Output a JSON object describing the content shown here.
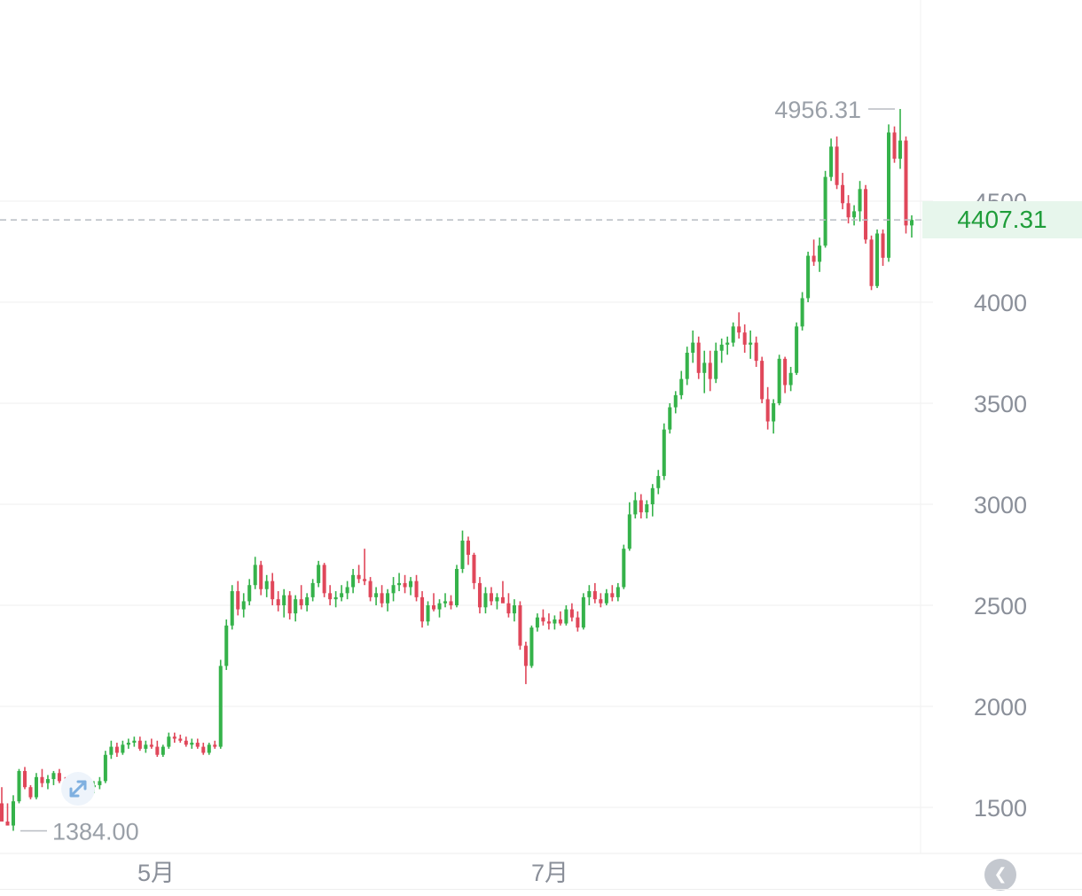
{
  "chart_data": {
    "type": "candlestick",
    "price_axis": {
      "ticks": [
        1500,
        2000,
        2500,
        3000,
        3500,
        4000,
        4500
      ],
      "tick_labels": [
        "1500",
        "2000",
        "2500",
        "3000",
        "3500",
        "4000",
        "4500"
      ],
      "range": [
        1300,
        5000
      ],
      "position": "right"
    },
    "time_axis": {
      "tick_labels": [
        "5月",
        "7月"
      ]
    },
    "last_price": "4407.31",
    "high_label": "4956.31",
    "low_label": "1384.00",
    "grid": true,
    "colors": {
      "up": "#35b24a",
      "down": "#e0475a",
      "last_price_text": "#1f9d3a",
      "last_price_bg": "#e7f6ec",
      "grid": "#efefef",
      "axis_text": "#8a8f99"
    },
    "candles_ohlc": [
      [
        1520,
        1600,
        1450,
        1430
      ],
      [
        1430,
        1520,
        1420,
        1410
      ],
      [
        1410,
        1560,
        1384,
        1530
      ],
      [
        1530,
        1690,
        1520,
        1680
      ],
      [
        1680,
        1700,
        1590,
        1600
      ],
      [
        1600,
        1610,
        1540,
        1550
      ],
      [
        1550,
        1670,
        1540,
        1650
      ],
      [
        1650,
        1690,
        1600,
        1620
      ],
      [
        1620,
        1660,
        1590,
        1640
      ],
      [
        1640,
        1680,
        1610,
        1670
      ],
      [
        1670,
        1690,
        1620,
        1630
      ],
      [
        1630,
        1650,
        1580,
        1600
      ],
      [
        1600,
        1640,
        1560,
        1590
      ],
      [
        1590,
        1650,
        1570,
        1620
      ],
      [
        1620,
        1660,
        1600,
        1640
      ],
      [
        1640,
        1650,
        1590,
        1600
      ],
      [
        1600,
        1630,
        1570,
        1610
      ],
      [
        1610,
        1650,
        1590,
        1630
      ],
      [
        1630,
        1780,
        1620,
        1760
      ],
      [
        1760,
        1830,
        1740,
        1800
      ],
      [
        1800,
        1820,
        1750,
        1770
      ],
      [
        1770,
        1830,
        1760,
        1810
      ],
      [
        1810,
        1840,
        1790,
        1820
      ],
      [
        1820,
        1850,
        1800,
        1830
      ],
      [
        1830,
        1850,
        1780,
        1790
      ],
      [
        1790,
        1830,
        1770,
        1810
      ],
      [
        1810,
        1840,
        1790,
        1800
      ],
      [
        1800,
        1830,
        1750,
        1760
      ],
      [
        1760,
        1810,
        1750,
        1800
      ],
      [
        1800,
        1870,
        1790,
        1850
      ],
      [
        1850,
        1870,
        1820,
        1840
      ],
      [
        1840,
        1860,
        1820,
        1830
      ],
      [
        1830,
        1850,
        1800,
        1810
      ],
      [
        1810,
        1840,
        1790,
        1820
      ],
      [
        1820,
        1840,
        1790,
        1800
      ],
      [
        1800,
        1820,
        1760,
        1770
      ],
      [
        1770,
        1820,
        1760,
        1810
      ],
      [
        1810,
        1830,
        1790,
        1800
      ],
      [
        1800,
        2230,
        1790,
        2200
      ],
      [
        2200,
        2430,
        2180,
        2400
      ],
      [
        2400,
        2600,
        2380,
        2570
      ],
      [
        2570,
        2620,
        2450,
        2480
      ],
      [
        2480,
        2560,
        2440,
        2520
      ],
      [
        2520,
        2630,
        2500,
        2600
      ],
      [
        2600,
        2740,
        2580,
        2700
      ],
      [
        2700,
        2720,
        2550,
        2580
      ],
      [
        2580,
        2650,
        2540,
        2620
      ],
      [
        2620,
        2660,
        2500,
        2530
      ],
      [
        2530,
        2570,
        2470,
        2500
      ],
      [
        2500,
        2580,
        2440,
        2550
      ],
      [
        2550,
        2570,
        2430,
        2460
      ],
      [
        2460,
        2550,
        2420,
        2530
      ],
      [
        2530,
        2600,
        2480,
        2500
      ],
      [
        2500,
        2560,
        2470,
        2540
      ],
      [
        2540,
        2630,
        2520,
        2610
      ],
      [
        2610,
        2720,
        2590,
        2700
      ],
      [
        2700,
        2710,
        2540,
        2560
      ],
      [
        2560,
        2600,
        2500,
        2530
      ],
      [
        2530,
        2570,
        2490,
        2540
      ],
      [
        2540,
        2600,
        2520,
        2560
      ],
      [
        2560,
        2620,
        2530,
        2590
      ],
      [
        2590,
        2680,
        2560,
        2650
      ],
      [
        2650,
        2700,
        2610,
        2630
      ],
      [
        2630,
        2780,
        2600,
        2620
      ],
      [
        2620,
        2640,
        2520,
        2540
      ],
      [
        2540,
        2590,
        2500,
        2560
      ],
      [
        2560,
        2600,
        2490,
        2510
      ],
      [
        2510,
        2580,
        2470,
        2560
      ],
      [
        2560,
        2640,
        2520,
        2600
      ],
      [
        2600,
        2660,
        2570,
        2610
      ],
      [
        2610,
        2650,
        2560,
        2590
      ],
      [
        2590,
        2640,
        2550,
        2620
      ],
      [
        2620,
        2650,
        2520,
        2540
      ],
      [
        2540,
        2570,
        2390,
        2420
      ],
      [
        2420,
        2520,
        2400,
        2500
      ],
      [
        2500,
        2560,
        2470,
        2480
      ],
      [
        2480,
        2530,
        2440,
        2510
      ],
      [
        2510,
        2560,
        2490,
        2520
      ],
      [
        2520,
        2550,
        2480,
        2500
      ],
      [
        2500,
        2700,
        2490,
        2680
      ],
      [
        2680,
        2870,
        2660,
        2820
      ],
      [
        2820,
        2840,
        2700,
        2750
      ],
      [
        2750,
        2760,
        2580,
        2610
      ],
      [
        2610,
        2640,
        2460,
        2490
      ],
      [
        2490,
        2590,
        2460,
        2560
      ],
      [
        2560,
        2590,
        2500,
        2520
      ],
      [
        2520,
        2560,
        2480,
        2540
      ],
      [
        2540,
        2620,
        2520,
        2510
      ],
      [
        2510,
        2560,
        2440,
        2460
      ],
      [
        2460,
        2530,
        2420,
        2500
      ],
      [
        2500,
        2520,
        2280,
        2300
      ],
      [
        2300,
        2320,
        2110,
        2200
      ],
      [
        2200,
        2400,
        2190,
        2390
      ],
      [
        2390,
        2460,
        2370,
        2440
      ],
      [
        2440,
        2480,
        2400,
        2420
      ],
      [
        2420,
        2460,
        2380,
        2410
      ],
      [
        2410,
        2450,
        2380,
        2430
      ],
      [
        2430,
        2470,
        2400,
        2410
      ],
      [
        2410,
        2500,
        2400,
        2480
      ],
      [
        2480,
        2510,
        2420,
        2440
      ],
      [
        2440,
        2470,
        2370,
        2390
      ],
      [
        2390,
        2560,
        2380,
        2540
      ],
      [
        2540,
        2600,
        2500,
        2570
      ],
      [
        2570,
        2610,
        2510,
        2530
      ],
      [
        2530,
        2560,
        2490,
        2510
      ],
      [
        2510,
        2580,
        2500,
        2560
      ],
      [
        2560,
        2600,
        2520,
        2540
      ],
      [
        2540,
        2610,
        2520,
        2590
      ],
      [
        2590,
        2800,
        2580,
        2780
      ],
      [
        2780,
        3010,
        2770,
        2950
      ],
      [
        2950,
        3060,
        2930,
        3020
      ],
      [
        3020,
        3050,
        2930,
        2960
      ],
      [
        2960,
        3020,
        2930,
        3000
      ],
      [
        3000,
        3100,
        2940,
        3080
      ],
      [
        3080,
        3170,
        3050,
        3140
      ],
      [
        3140,
        3400,
        3120,
        3370
      ],
      [
        3370,
        3500,
        3350,
        3480
      ],
      [
        3480,
        3560,
        3450,
        3540
      ],
      [
        3540,
        3660,
        3520,
        3620
      ],
      [
        3620,
        3780,
        3590,
        3750
      ],
      [
        3750,
        3860,
        3700,
        3800
      ],
      [
        3800,
        3830,
        3620,
        3650
      ],
      [
        3650,
        3760,
        3550,
        3700
      ],
      [
        3700,
        3760,
        3560,
        3620
      ],
      [
        3620,
        3800,
        3600,
        3760
      ],
      [
        3760,
        3820,
        3700,
        3790
      ],
      [
        3790,
        3830,
        3740,
        3800
      ],
      [
        3800,
        3900,
        3780,
        3880
      ],
      [
        3880,
        3950,
        3820,
        3850
      ],
      [
        3850,
        3890,
        3750,
        3790
      ],
      [
        3790,
        3860,
        3720,
        3800
      ],
      [
        3800,
        3830,
        3680,
        3710
      ],
      [
        3710,
        3730,
        3500,
        3520
      ],
      [
        3520,
        3580,
        3370,
        3410
      ],
      [
        3410,
        3520,
        3350,
        3500
      ],
      [
        3500,
        3740,
        3490,
        3720
      ],
      [
        3720,
        3730,
        3550,
        3590
      ],
      [
        3590,
        3680,
        3560,
        3650
      ],
      [
        3650,
        3900,
        3640,
        3880
      ],
      [
        3880,
        4050,
        3860,
        4020
      ],
      [
        4020,
        4250,
        4000,
        4230
      ],
      [
        4230,
        4310,
        4180,
        4200
      ],
      [
        4200,
        4320,
        4150,
        4280
      ],
      [
        4280,
        4650,
        4270,
        4620
      ],
      [
        4620,
        4810,
        4600,
        4770
      ],
      [
        4770,
        4820,
        4560,
        4580
      ],
      [
        4580,
        4640,
        4460,
        4490
      ],
      [
        4490,
        4530,
        4390,
        4420
      ],
      [
        4420,
        4480,
        4380,
        4450
      ],
      [
        4450,
        4600,
        4400,
        4560
      ],
      [
        4560,
        4580,
        4290,
        4310
      ],
      [
        4310,
        4330,
        4060,
        4080
      ],
      [
        4080,
        4360,
        4070,
        4340
      ],
      [
        4340,
        4360,
        4180,
        4220
      ],
      [
        4220,
        4880,
        4200,
        4840
      ],
      [
        4840,
        4870,
        4690,
        4710
      ],
      [
        4710,
        4956.31,
        4660,
        4800
      ],
      [
        4800,
        4820,
        4340,
        4380
      ],
      [
        4380,
        4430,
        4320,
        4407.31
      ]
    ]
  }
}
